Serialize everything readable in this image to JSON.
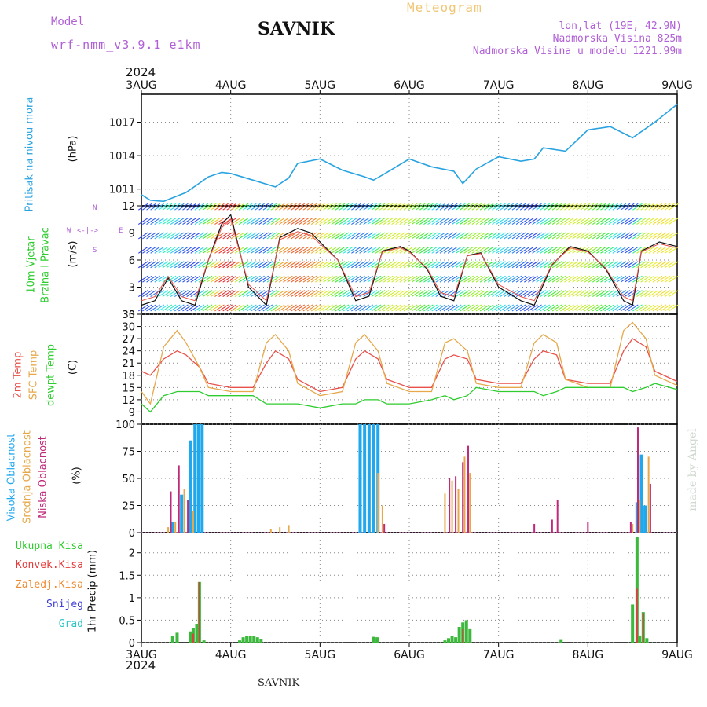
{
  "header": {
    "model_label": "Model",
    "model_name": "wrf-nmm_v3.9.1  e1km",
    "title": "SAVNIK",
    "meteogram": "Meteogram",
    "lonlat": "lon,lat (19E, 42.9N)",
    "elevation": "Nadmorska Visina 825m",
    "model_elevation": "Nadmorska Visina u modelu 1221.99m",
    "year_top": "2024",
    "year_bottom": "2024",
    "footer": "SAVNIK",
    "watermark": "made by Angel"
  },
  "time_axis": {
    "labels": [
      "3AUG",
      "4AUG",
      "5AUG",
      "6AUG",
      "7AUG",
      "8AUG",
      "9AUG"
    ],
    "range_days": [
      0,
      6
    ]
  },
  "panels": {
    "pressure": {
      "label": "Pritisak na nivou mora",
      "unit": "(hPa)"
    },
    "wind": {
      "label1": "10m Vjetar",
      "label2": "Brzina i Pravac",
      "unit": "(m/s)",
      "compass_n": "N",
      "compass_w": "W",
      "compass_e": "E",
      "compass_s": "S"
    },
    "temp": {
      "label_2m": "2m Temp",
      "label_sfc": "SFC Temp",
      "label_dew": "dewpt Temp",
      "unit": "(C)"
    },
    "cloud": {
      "label_high": "Visoka Oblacnost",
      "label_mid": "Srednja Oblacnost",
      "label_low": "Niska Oblacnost",
      "unit": "(%)"
    },
    "precip": {
      "label_total": "Ukupna Kisa",
      "label_conv": "Konvek.Kisa",
      "label_frz": "Zaledj.Kisa",
      "label_snow": "Snijeg",
      "label_grad": "Grad",
      "unit": "1hr Precip (mm)"
    }
  },
  "colors": {
    "pressure": "#29a3e0",
    "temp_2m": "#e8504a",
    "temp_sfc": "#e6a84a",
    "temp_dew": "#2ecc2e",
    "cloud_high": "#1fa8ee",
    "cloud_mid": "#e6a84a",
    "cloud_low": "#c0287a",
    "precip_total": "#3cb83c",
    "precip_conv": "#d94040",
    "label_total": "#2ecc2e",
    "label_conv": "#e83c3c",
    "label_frz": "#f08a30",
    "label_snow": "#3b3bd9",
    "label_grad": "#2cc4c4",
    "label_purple": "#b05fd6",
    "label_wind": "#2ecc2e"
  },
  "chart_data": [
    {
      "type": "line",
      "name": "pressure",
      "ylabel": "Pritisak na nivou mora (hPa)",
      "ylim": [
        1009.5,
        1019.5
      ],
      "yticks": [
        1011,
        1014,
        1017
      ],
      "grid": true,
      "x": [
        0,
        0.1,
        0.25,
        0.5,
        0.75,
        0.9,
        1.0,
        1.25,
        1.5,
        1.65,
        1.75,
        2.0,
        2.25,
        2.5,
        2.6,
        2.75,
        3.0,
        3.25,
        3.5,
        3.6,
        3.75,
        4.0,
        4.25,
        4.4,
        4.5,
        4.75,
        5.0,
        5.25,
        5.5,
        5.75,
        6.0
      ],
      "series": [
        {
          "values": [
            1010.5,
            1010.0,
            1009.9,
            1010.7,
            1012.1,
            1012.5,
            1012.4,
            1011.8,
            1011.2,
            1012.0,
            1013.3,
            1013.7,
            1012.7,
            1012.1,
            1011.8,
            1012.5,
            1013.7,
            1013.0,
            1012.6,
            1011.5,
            1012.8,
            1013.9,
            1013.5,
            1013.7,
            1014.7,
            1014.4,
            1016.3,
            1016.6,
            1015.6,
            1017.0,
            1018.6
          ]
        }
      ]
    },
    {
      "type": "line",
      "name": "wind",
      "ylabel": "10m Vjetar Brzina i Pravac (m/s)",
      "ylim": [
        0,
        12
      ],
      "yticks": [
        0,
        3,
        6,
        9,
        12
      ],
      "grid": true,
      "x": [
        0,
        0.15,
        0.3,
        0.45,
        0.6,
        0.75,
        0.9,
        1.0,
        1.2,
        1.4,
        1.55,
        1.75,
        1.9,
        2.0,
        2.2,
        2.4,
        2.55,
        2.7,
        2.9,
        3.0,
        3.2,
        3.35,
        3.5,
        3.65,
        3.8,
        4.0,
        4.25,
        4.4,
        4.6,
        4.8,
        5.0,
        5.2,
        5.4,
        5.5,
        5.6,
        5.8,
        6.0
      ],
      "series": [
        {
          "values": [
            1.0,
            1.5,
            4.0,
            1.5,
            1.0,
            6.0,
            10.0,
            11.0,
            3.0,
            1.0,
            8.5,
            9.5,
            9.0,
            8.0,
            6.0,
            1.5,
            2.0,
            7.0,
            7.5,
            7.0,
            5.0,
            2.0,
            1.5,
            6.5,
            6.8,
            3.0,
            1.5,
            1.0,
            5.5,
            7.5,
            7.0,
            5.0,
            1.5,
            1.0,
            7.0,
            8.0,
            7.5
          ]
        }
      ]
    },
    {
      "type": "line",
      "name": "temperature",
      "ylabel": "2m Temp / SFC Temp / dewpt Temp (C)",
      "ylim": [
        6,
        33
      ],
      "yticks": [
        9,
        12,
        15,
        18,
        21,
        24,
        27,
        30,
        33
      ],
      "grid": true,
      "x": [
        0,
        0.1,
        0.25,
        0.4,
        0.5,
        0.65,
        0.75,
        1.0,
        1.25,
        1.4,
        1.5,
        1.65,
        1.75,
        2.0,
        2.25,
        2.4,
        2.5,
        2.65,
        2.75,
        3.0,
        3.25,
        3.4,
        3.5,
        3.65,
        3.75,
        4.0,
        4.25,
        4.4,
        4.5,
        4.65,
        4.75,
        5.0,
        5.25,
        5.4,
        5.5,
        5.65,
        5.75,
        6.0
      ],
      "series": [
        {
          "name": "2m Temp",
          "values": [
            19,
            18,
            22,
            24,
            23,
            20,
            16,
            15,
            15,
            21,
            24,
            22,
            17,
            14,
            15,
            22,
            24,
            22,
            17,
            15,
            15,
            22,
            23,
            22,
            17,
            16,
            16,
            22,
            24,
            23,
            17,
            16,
            16,
            24,
            27,
            25,
            19,
            16.5
          ]
        },
        {
          "name": "SFC Temp",
          "values": [
            14,
            11,
            25,
            29,
            26,
            20,
            15,
            14,
            14,
            26,
            28,
            24,
            16,
            13,
            14,
            26,
            28,
            24,
            16,
            14,
            14,
            26,
            27,
            24,
            16,
            15,
            15,
            26,
            28,
            26,
            17,
            15,
            15,
            29,
            31,
            27,
            18,
            15.5
          ]
        },
        {
          "name": "dewpt Temp",
          "values": [
            11,
            9,
            13,
            14,
            14,
            14,
            13,
            13,
            13,
            11,
            11,
            11,
            11,
            10,
            11,
            11,
            12,
            12,
            11,
            11,
            12,
            13,
            12,
            13,
            15,
            14,
            14,
            14,
            13,
            14,
            15,
            15,
            15,
            15,
            14,
            15,
            16,
            14.5
          ]
        }
      ]
    },
    {
      "type": "bar",
      "name": "cloud_cover",
      "ylabel": "Visoka / Srednja / Niska Oblacnost (%)",
      "ylim": [
        0,
        100
      ],
      "yticks": [
        0,
        25,
        50,
        75,
        100
      ],
      "grid": true,
      "series": [
        {
          "name": "Visoka Oblacnost",
          "x": [
            0.35,
            0.45,
            0.55,
            0.6,
            0.64,
            0.68,
            2.45,
            2.5,
            2.55,
            2.6,
            2.65,
            5.55,
            5.6,
            5.64
          ],
          "values": [
            10,
            35,
            85,
            100,
            100,
            100,
            100,
            100,
            100,
            100,
            100,
            28,
            72,
            25
          ]
        },
        {
          "name": "Srednja Oblacnost",
          "x": [
            0.3,
            0.38,
            0.48,
            0.58,
            1.45,
            1.55,
            1.65,
            2.65,
            2.7,
            3.4,
            3.48,
            3.55,
            3.62,
            3.68,
            5.5,
            5.58,
            5.68
          ],
          "values": [
            5,
            10,
            40,
            20,
            3,
            5,
            7,
            55,
            25,
            36,
            48,
            40,
            70,
            55,
            8,
            30,
            70
          ]
        },
        {
          "name": "Niska Oblacnost",
          "x": [
            0.33,
            0.42,
            0.52,
            2.72,
            3.45,
            3.52,
            3.6,
            3.66,
            4.4,
            4.6,
            4.66,
            5.0,
            5.48,
            5.56,
            5.7
          ],
          "values": [
            38,
            62,
            30,
            8,
            50,
            52,
            65,
            80,
            8,
            12,
            30,
            10,
            10,
            97,
            45
          ]
        }
      ]
    },
    {
      "type": "bar",
      "name": "precipitation",
      "ylabel": "1hr Precip (mm)",
      "ylim": [
        0,
        2.45
      ],
      "yticks": [
        0,
        0.5,
        1,
        1.5,
        2
      ],
      "grid": true,
      "series": [
        {
          "name": "Ukupna Kisa",
          "x": [
            0.35,
            0.4,
            0.55,
            0.58,
            0.62,
            0.65,
            0.7,
            1.1,
            1.14,
            1.18,
            1.22,
            1.26,
            1.3,
            1.34,
            2.6,
            2.64,
            3.4,
            3.44,
            3.48,
            3.52,
            3.56,
            3.6,
            3.64,
            3.68,
            4.7,
            5.5,
            5.55,
            5.58,
            5.62,
            5.66
          ],
          "values": [
            0.15,
            0.22,
            0.25,
            0.32,
            0.42,
            1.35,
            0.05,
            0.05,
            0.12,
            0.15,
            0.15,
            0.15,
            0.12,
            0.08,
            0.13,
            0.12,
            0.05,
            0.1,
            0.15,
            0.12,
            0.35,
            0.45,
            0.5,
            0.3,
            0.06,
            0.85,
            2.35,
            0.15,
            0.68,
            0.1
          ]
        },
        {
          "name": "Konvek.Kisa",
          "x": [
            0.58,
            0.65,
            3.6,
            5.55,
            5.62
          ],
          "values": [
            0.2,
            1.35,
            0.3,
            1.2,
            0.66
          ]
        }
      ]
    }
  ]
}
